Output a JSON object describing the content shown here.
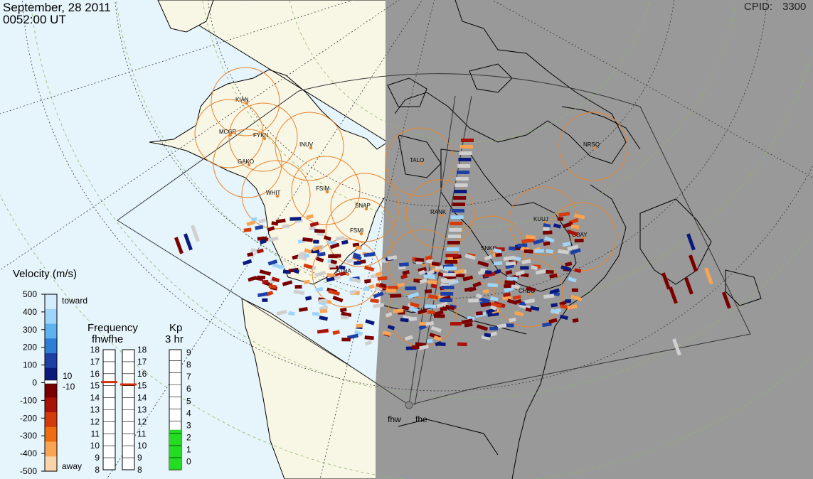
{
  "header": {
    "date": "September, 28 2011",
    "time": "0052:00 UT",
    "cpid_label": "CPID:",
    "cpid_value": "3300"
  },
  "stations": [
    {
      "code": "KIAN"
    },
    {
      "code": "MCGR"
    },
    {
      "code": "FYKN"
    },
    {
      "code": "INUV"
    },
    {
      "code": "GAKO"
    },
    {
      "code": "WHIT"
    },
    {
      "code": "FSIM"
    },
    {
      "code": "SNAP"
    },
    {
      "code": "FSMI"
    },
    {
      "code": "ATHA"
    },
    {
      "code": "GILL"
    },
    {
      "code": "PINA"
    },
    {
      "code": "RANK"
    },
    {
      "code": "TALO"
    },
    {
      "code": "KUUJ"
    },
    {
      "code": "SNKQ"
    },
    {
      "code": "CHBG"
    },
    {
      "code": "GBAY"
    },
    {
      "code": "NRSQ"
    }
  ],
  "radars": [
    "fhw",
    "fhe"
  ],
  "velocity_scale": {
    "title": "Velocity (m/s)",
    "ticks": [
      "500",
      "400",
      "300",
      "200",
      "100",
      "0",
      "-100",
      "-200",
      "-300",
      "-400",
      "-500"
    ],
    "toward_label": "toward",
    "away_label": "away",
    "threshold_pos": "10",
    "threshold_neg": "-10",
    "colors": [
      "#d4ecfc",
      "#9fd4fb",
      "#5fb2f0",
      "#2e7ed8",
      "#1d3fa6",
      "#0a1a7c",
      "#7a0000",
      "#a81208",
      "#d43a0a",
      "#ef6d0f",
      "#f9a452",
      "#fbd3aa"
    ]
  },
  "frequency": {
    "title": "Frequency",
    "subtitle": "fhwfhe",
    "ticks": [
      "18",
      "17",
      "16",
      "15",
      "14",
      "13",
      "12",
      "11",
      "10",
      "9",
      "8"
    ],
    "fhw_value": 15.3,
    "fhe_value": 15.1
  },
  "kp": {
    "title": "Kp",
    "subtitle": "3 hr",
    "ticks": [
      "9",
      "8",
      "7",
      "6",
      "5",
      "4",
      "3",
      "2",
      "1",
      "0"
    ],
    "value": 3.3,
    "bar_color": "#22dd22"
  },
  "colors": {
    "ocean": "#e6f4fb",
    "land": "#f8f6e5",
    "night": "#999999",
    "fov_circle": "#e8852c",
    "scatter_gray": "#cfcfcf"
  }
}
